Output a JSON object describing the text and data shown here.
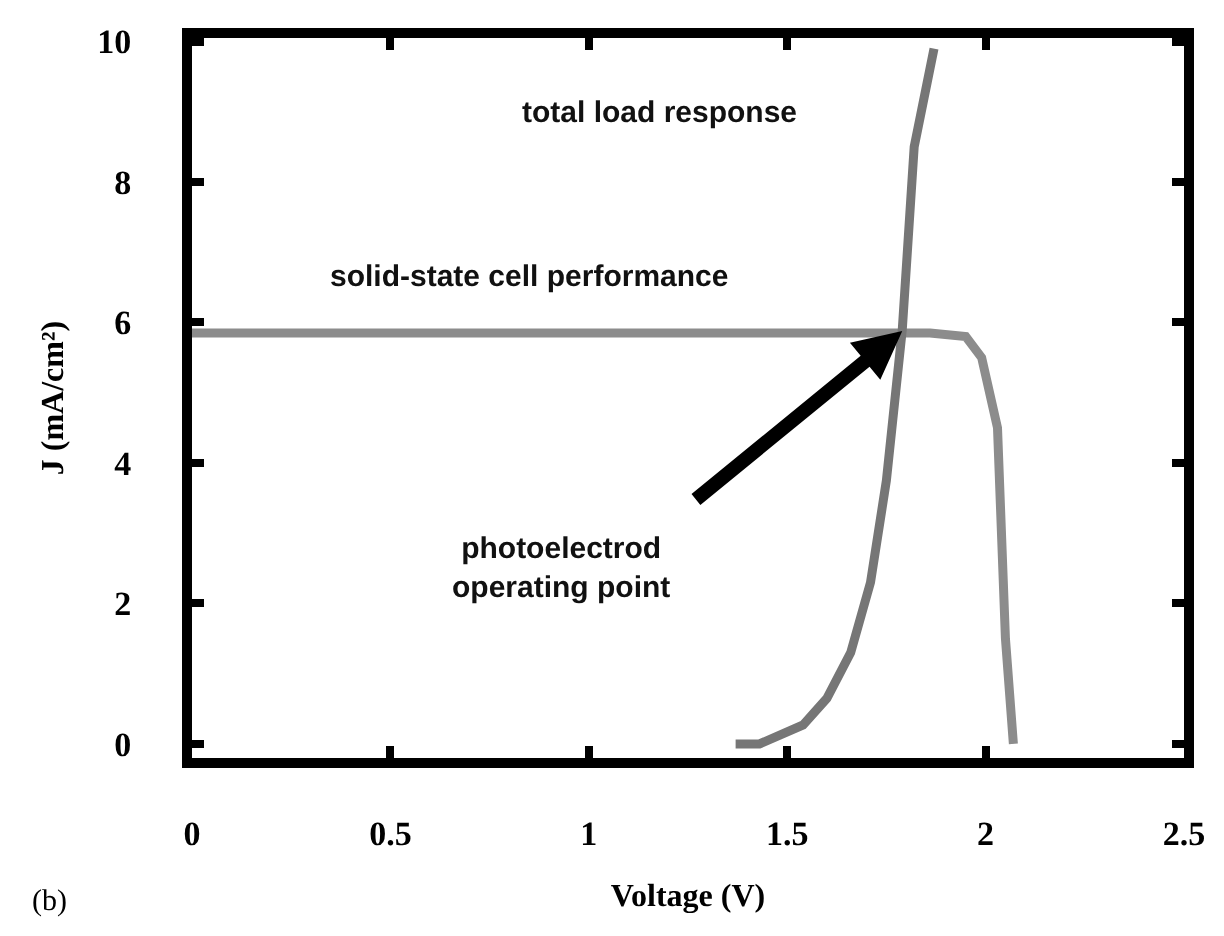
{
  "chart_data": {
    "type": "line",
    "xlabel": "Voltage (V)",
    "ylabel": "J (mA/cm²)",
    "xlim": [
      0,
      2.5
    ],
    "ylim": [
      -0.2,
      10.05
    ],
    "xticks": [
      0,
      0.5,
      1,
      1.5,
      2,
      2.5
    ],
    "yticks": [
      0,
      2,
      4,
      6,
      8,
      10
    ],
    "grid": false,
    "marker": "none",
    "line_style": "solid",
    "series": [
      {
        "color": "#8c8c8c",
        "x": [
          0,
          1.86,
          1.95,
          1.99,
          2.03,
          2.05,
          2.07
        ],
        "values": [
          5.85,
          5.85,
          5.8,
          5.5,
          4.5,
          1.5,
          0
        ]
      },
      {
        "color": "#767676",
        "x": [
          1.37,
          1.43,
          1.54,
          1.6,
          1.66,
          1.71,
          1.75,
          1.79,
          1.82,
          1.87
        ],
        "values": [
          0,
          0,
          0.27,
          0.65,
          1.3,
          2.3,
          3.75,
          5.9,
          8.5,
          9.9
        ]
      }
    ],
    "annotations": [
      "total load response",
      "solid-state cell performance",
      "photoelectrod\noperating point",
      "(b)"
    ]
  }
}
